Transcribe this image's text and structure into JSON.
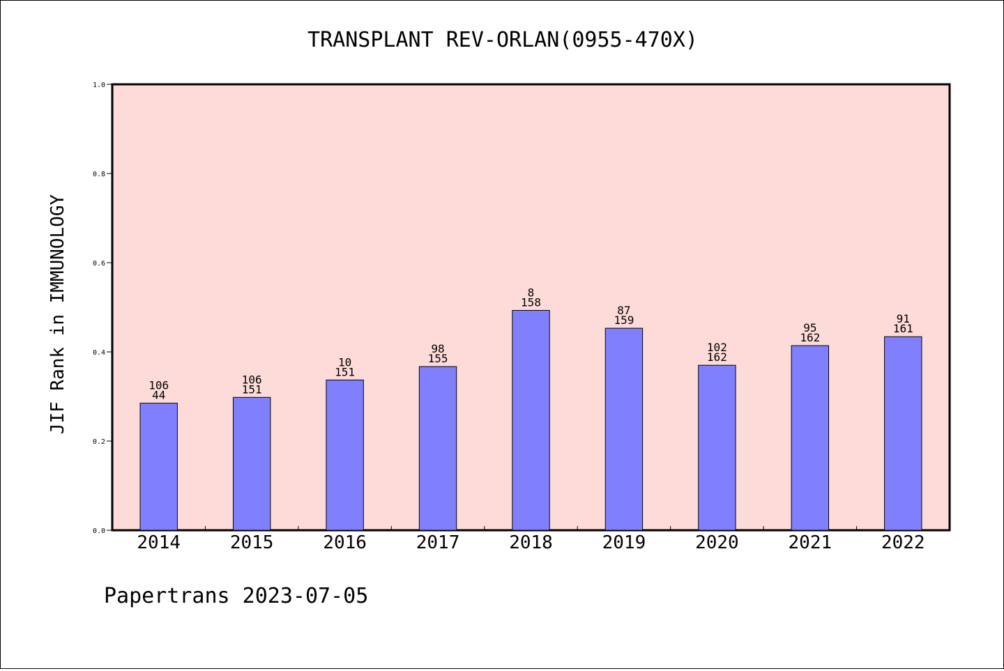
{
  "chart_data": {
    "type": "bar",
    "title": "TRANSPLANT REV-ORLAN(0955-470X)",
    "xlabel": "",
    "ylabel": "JIF Rank in IMMUNOLOGY",
    "ylim": [
      0,
      1.0
    ],
    "yticks": [
      "0.0",
      "0.2",
      "0.4",
      "0.6",
      "0.8",
      "1.0"
    ],
    "categories": [
      "2014",
      "2015",
      "2016",
      "2017",
      "2018",
      "2019",
      "2020",
      "2021",
      "2022"
    ],
    "values": [
      0.285,
      0.298,
      0.337,
      0.367,
      0.493,
      0.453,
      0.37,
      0.414,
      0.434
    ],
    "rank_labels": [
      "106",
      "106",
      "10",
      "98",
      "8",
      "87",
      "102",
      "95",
      "91"
    ],
    "total_labels": [
      "44",
      "151",
      "151",
      "155",
      "158",
      "159",
      "162",
      "162",
      "161"
    ],
    "grid": false,
    "colors": {
      "plot_background": "#fddbd8",
      "bar": "#8080ff",
      "bar_edge": "#000000"
    }
  },
  "footer": {
    "watermark": "Papertrans 2023-07-05"
  }
}
